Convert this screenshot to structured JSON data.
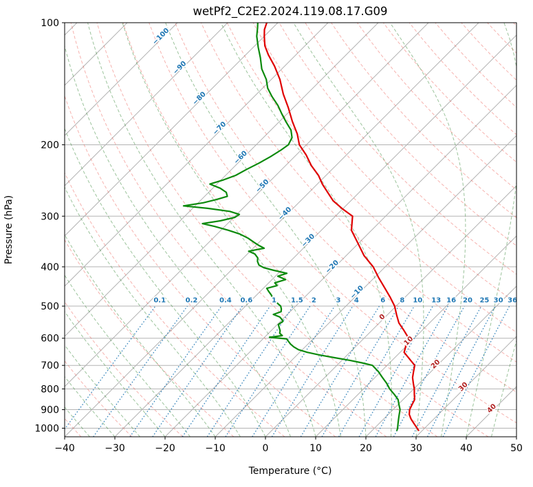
{
  "figure": {
    "title": "wetPf2_C2E2.2024.119.08.17.G09",
    "x_axis_label": "Temperature (°C)",
    "y_axis_label": "Pressure (hPa)"
  },
  "chart_data": {
    "type": "line",
    "variant": "skew-t-log-p-sounding",
    "title": "wetPf2_C2E2.2024.119.08.17.G09",
    "xlabel": "Temperature (°C)",
    "ylabel": "Pressure (hPa)",
    "xlim": [
      -40,
      50
    ],
    "ylim": [
      1050,
      100
    ],
    "x_ticks": [
      -40,
      -30,
      -20,
      -10,
      0,
      10,
      20,
      30,
      40,
      50
    ],
    "y_ticks": [
      100,
      200,
      300,
      400,
      500,
      600,
      700,
      800,
      900,
      1000
    ],
    "grid": true,
    "legend": "none",
    "skew_deg": 45,
    "isotherms_c": [
      -120,
      -110,
      -100,
      -90,
      -80,
      -70,
      -60,
      -50,
      -40,
      -30,
      -20,
      -10,
      0,
      10,
      20,
      30,
      40,
      50
    ],
    "isotherm_inline_labels_c": [
      -100,
      -90,
      -80,
      -70,
      -60,
      -50,
      -40,
      -30,
      -20,
      -10,
      0,
      10,
      20,
      30,
      40
    ],
    "dry_adiabats_theta_c": [
      -40,
      -30,
      -20,
      -10,
      0,
      10,
      20,
      30,
      40,
      50,
      60,
      70,
      80,
      90,
      100,
      110,
      120,
      130,
      140,
      150,
      160,
      170,
      180,
      190
    ],
    "moist_adiabats_start_temp_c": [
      -40,
      -35,
      -30,
      -25,
      -20,
      -15,
      -10,
      -5,
      0,
      5,
      10,
      15,
      20,
      25,
      30,
      35,
      40,
      45,
      50
    ],
    "mixing_ratio_g_per_kg": [
      0.1,
      0.2,
      0.4,
      0.6,
      1,
      1.5,
      2,
      3,
      4,
      6,
      8,
      10,
      13,
      16,
      20,
      25,
      30,
      36
    ],
    "mixing_ratio_label_pressure_hpa": 484,
    "mixing_ratio_top_pressure_hpa": 500,
    "series": [
      {
        "name": "temperature",
        "color": "#e00000",
        "style": "solid",
        "points_p_hpa_t_c": [
          [
            1012,
            29.2
          ],
          [
            1000,
            28.5
          ],
          [
            975,
            27.0
          ],
          [
            950,
            25.5
          ],
          [
            925,
            24.2
          ],
          [
            900,
            23.3
          ],
          [
            875,
            22.8
          ],
          [
            850,
            22.3
          ],
          [
            825,
            21.2
          ],
          [
            800,
            20.1
          ],
          [
            775,
            18.8
          ],
          [
            750,
            17.5
          ],
          [
            725,
            16.5
          ],
          [
            700,
            15.5
          ],
          [
            675,
            13.2
          ],
          [
            650,
            10.8
          ],
          [
            625,
            9.8
          ],
          [
            600,
            8.9
          ],
          [
            575,
            6.5
          ],
          [
            550,
            3.9
          ],
          [
            525,
            1.8
          ],
          [
            500,
            -0.3
          ],
          [
            475,
            -3.0
          ],
          [
            450,
            -6.0
          ],
          [
            425,
            -9.2
          ],
          [
            400,
            -12.4
          ],
          [
            375,
            -16.5
          ],
          [
            350,
            -20.1
          ],
          [
            325,
            -24.0
          ],
          [
            300,
            -26.6
          ],
          [
            288,
            -30.0
          ],
          [
            275,
            -33.5
          ],
          [
            262,
            -36.3
          ],
          [
            250,
            -39.0
          ],
          [
            238,
            -41.5
          ],
          [
            225,
            -44.9
          ],
          [
            212,
            -48.0
          ],
          [
            200,
            -51.4
          ],
          [
            188,
            -54.0
          ],
          [
            175,
            -57.5
          ],
          [
            162,
            -61.0
          ],
          [
            150,
            -64.7
          ],
          [
            138,
            -68.3
          ],
          [
            128,
            -72.0
          ],
          [
            120,
            -75.5
          ],
          [
            114,
            -78.0
          ],
          [
            108,
            -80.0
          ],
          [
            104,
            -81.3
          ],
          [
            100,
            -82.2
          ]
        ]
      },
      {
        "name": "dewpoint",
        "color": "#0c8a0c",
        "style": "solid",
        "points_p_hpa_t_c": [
          [
            1012,
            24.9
          ],
          [
            1000,
            24.6
          ],
          [
            975,
            23.8
          ],
          [
            950,
            23.0
          ],
          [
            925,
            22.2
          ],
          [
            900,
            21.4
          ],
          [
            875,
            20.2
          ],
          [
            850,
            19.0
          ],
          [
            825,
            17.2
          ],
          [
            800,
            15.2
          ],
          [
            775,
            13.5
          ],
          [
            750,
            11.5
          ],
          [
            725,
            9.5
          ],
          [
            700,
            7.1
          ],
          [
            690,
            4.5
          ],
          [
            680,
            1.5
          ],
          [
            670,
            -2.0
          ],
          [
            660,
            -5.5
          ],
          [
            650,
            -8.5
          ],
          [
            640,
            -10.8
          ],
          [
            630,
            -12.3
          ],
          [
            620,
            -13.5
          ],
          [
            610,
            -14.5
          ],
          [
            602,
            -15.3
          ],
          [
            597,
            -19.0
          ],
          [
            591,
            -16.8
          ],
          [
            583,
            -17.8
          ],
          [
            575,
            -18.2
          ],
          [
            565,
            -19.0
          ],
          [
            555,
            -19.8
          ],
          [
            545,
            -19.5
          ],
          [
            540,
            -20.0
          ],
          [
            532,
            -21.0
          ],
          [
            524,
            -22.8
          ],
          [
            516,
            -21.8
          ],
          [
            508,
            -22.3
          ],
          [
            500,
            -23.0
          ],
          [
            490,
            -24.5
          ],
          [
            480,
            -26.0
          ],
          [
            470,
            -27.0
          ],
          [
            460,
            -28.3
          ],
          [
            452,
            -29.3
          ],
          [
            445,
            -27.8
          ],
          [
            438,
            -28.8
          ],
          [
            430,
            -27.3
          ],
          [
            422,
            -29.5
          ],
          [
            415,
            -28.3
          ],
          [
            408,
            -31.5
          ],
          [
            402,
            -34.0
          ],
          [
            396,
            -35.5
          ],
          [
            388,
            -36.5
          ],
          [
            380,
            -37.2
          ],
          [
            372,
            -38.5
          ],
          [
            366,
            -40.3
          ],
          [
            360,
            -37.8
          ],
          [
            354,
            -39.5
          ],
          [
            348,
            -41.0
          ],
          [
            340,
            -43.0
          ],
          [
            332,
            -45.5
          ],
          [
            325,
            -48.5
          ],
          [
            318,
            -52.0
          ],
          [
            313,
            -55.0
          ],
          [
            308,
            -52.0
          ],
          [
            302,
            -49.8
          ],
          [
            297,
            -49.5
          ],
          [
            292,
            -52.0
          ],
          [
            287,
            -57.0
          ],
          [
            283,
            -62.3
          ],
          [
            278,
            -59.0
          ],
          [
            273,
            -57.0
          ],
          [
            268,
            -55.5
          ],
          [
            262,
            -56.5
          ],
          [
            256,
            -58.5
          ],
          [
            250,
            -61.4
          ],
          [
            244,
            -59.5
          ],
          [
            238,
            -58.0
          ],
          [
            230,
            -57.0
          ],
          [
            222,
            -55.8
          ],
          [
            214,
            -54.8
          ],
          [
            206,
            -54.0
          ],
          [
            200,
            -53.6
          ],
          [
            192,
            -54.3
          ],
          [
            184,
            -56.0
          ],
          [
            176,
            -58.5
          ],
          [
            168,
            -61.0
          ],
          [
            160,
            -63.5
          ],
          [
            152,
            -66.5
          ],
          [
            145,
            -69.0
          ],
          [
            138,
            -71.0
          ],
          [
            130,
            -74.0
          ],
          [
            122,
            -76.5
          ],
          [
            115,
            -79.0
          ],
          [
            108,
            -81.5
          ],
          [
            103,
            -83.0
          ],
          [
            100,
            -84.0
          ]
        ]
      }
    ],
    "style_colors": {
      "isotherm": "#b3b3b3",
      "pressure_grid": "#b3b3b3",
      "dry_adiabat": "rgba(235,85,75,0.45)",
      "moist_adiabat": "rgba(55,135,55,0.5)",
      "mixing_ratio": "rgba(31,119,180,0.9)",
      "isotherm_label_negative": "#1f77b4",
      "isotherm_label_positive": "#b22222",
      "mixing_label": "#1f77b4",
      "axis": "#000000"
    }
  }
}
